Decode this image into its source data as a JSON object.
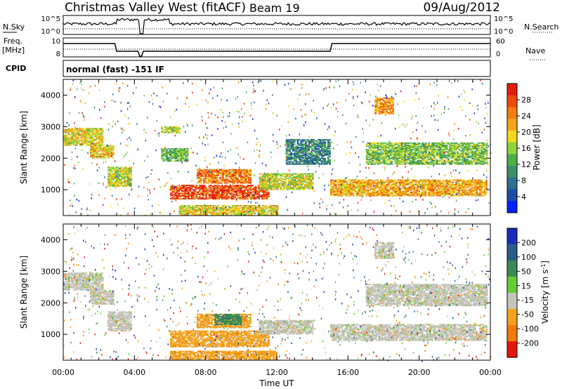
{
  "header": {
    "station": "Christmas Valley West (fitACF)",
    "beam": "Beam 19",
    "date": "09/Aug/2012"
  },
  "side_labels": {
    "nsky": "N.Sky",
    "nsearch": "N.Search",
    "freq": "Freq.",
    "freq_unit": "[MHz]",
    "nave": "Nave",
    "cpid": "CPID",
    "cpid_value": "normal (fast) -151 IF"
  },
  "noise_axis": {
    "left_ticks": [
      "10^5",
      "10^0"
    ],
    "right_ticks": [
      "10^5",
      "10^0"
    ]
  },
  "freq_axis": {
    "left_ticks": [
      "10",
      "8"
    ],
    "right_ticks": [
      "60",
      "0"
    ]
  },
  "chart_data": [
    {
      "type": "heatmap",
      "name": "power",
      "ylabel": "Slant Range [km]",
      "xlabel": "Time UT",
      "ylim": [
        180,
        4500
      ],
      "y_ticks": [
        "1000",
        "2000",
        "3000",
        "4000"
      ],
      "x_ticks": [
        "00:00",
        "04:00",
        "08:00",
        "12:00",
        "16:00",
        "20:00",
        "00:00"
      ],
      "colorbar": {
        "label": "Power [dB]",
        "ticks": [
          "4",
          "8",
          "12",
          "16",
          "20",
          "24",
          "28"
        ],
        "colors": [
          "#0022ff",
          "#1c4ca8",
          "#2f6f8f",
          "#3c8f6a",
          "#4fb04a",
          "#8fd43a",
          "#f0d81e",
          "#f5a61a",
          "#f27b12",
          "#ee4a0e",
          "#e51b0a"
        ]
      },
      "data_gap_hours": [
        4.25,
        4.5
      ],
      "bands": [
        {
          "t": [
            0.0,
            2.2
          ],
          "r": [
            2400,
            2950
          ],
          "level": 0.6
        },
        {
          "t": [
            1.5,
            2.8
          ],
          "r": [
            2000,
            2400
          ],
          "level": 0.65
        },
        {
          "t": [
            2.5,
            3.8
          ],
          "r": [
            1100,
            1700
          ],
          "level": 0.55
        },
        {
          "t": [
            5.5,
            7.0
          ],
          "r": [
            1900,
            2300
          ],
          "level": 0.4
        },
        {
          "t": [
            6.0,
            11.5
          ],
          "r": [
            700,
            1150
          ],
          "level": 0.9
        },
        {
          "t": [
            7.5,
            10.5
          ],
          "r": [
            1200,
            1650
          ],
          "level": 0.8
        },
        {
          "t": [
            6.5,
            12.0
          ],
          "r": [
            200,
            500
          ],
          "level": 0.6
        },
        {
          "t": [
            11.0,
            14.0
          ],
          "r": [
            1000,
            1500
          ],
          "level": 0.55
        },
        {
          "t": [
            15.0,
            23.8
          ],
          "r": [
            800,
            1300
          ],
          "level": 0.7
        },
        {
          "t": [
            17.0,
            23.8
          ],
          "r": [
            1800,
            2500
          ],
          "level": 0.45
        },
        {
          "t": [
            17.5,
            18.5
          ],
          "r": [
            3400,
            3900
          ],
          "level": 0.75
        },
        {
          "t": [
            12.5,
            15.0
          ],
          "r": [
            1800,
            2600
          ],
          "level": 0.25
        },
        {
          "t": [
            5.5,
            6.5
          ],
          "r": [
            2800,
            3000
          ],
          "level": 0.5
        }
      ]
    },
    {
      "type": "heatmap",
      "name": "velocity",
      "ylabel": "Slant Range [km]",
      "xlabel": "Time UT",
      "ylim": [
        180,
        4500
      ],
      "y_ticks": [
        "1000",
        "2000",
        "3000",
        "4000"
      ],
      "x_ticks": [
        "00:00",
        "04:00",
        "08:00",
        "12:00",
        "16:00",
        "20:00",
        "00:00"
      ],
      "colorbar": {
        "label": "Velocity [m s^-1]",
        "ticks": [
          "200",
          "100",
          "50",
          "15",
          "-15",
          "-50",
          "-100",
          "-200"
        ],
        "colors": [
          "#1a2db8",
          "#2a5c8a",
          "#3b8a55",
          "#66cc33",
          "#c4c4bc",
          "#f6a21c",
          "#f07a10",
          "#e3150c"
        ]
      },
      "data_gap_hours": [
        4.25,
        4.5
      ],
      "bands": [
        {
          "t": [
            0.0,
            2.2
          ],
          "r": [
            2400,
            2950
          ],
          "level": 4
        },
        {
          "t": [
            1.5,
            2.8
          ],
          "r": [
            1950,
            2400
          ],
          "level": 4
        },
        {
          "t": [
            2.5,
            3.8
          ],
          "r": [
            1100,
            1700
          ],
          "level": 4
        },
        {
          "t": [
            6.0,
            11.5
          ],
          "r": [
            600,
            1100
          ],
          "level": 5
        },
        {
          "t": [
            7.5,
            10.5
          ],
          "r": [
            1200,
            1650
          ],
          "level": 5
        },
        {
          "t": [
            8.5,
            10.0
          ],
          "r": [
            1300,
            1650
          ],
          "level": 2
        },
        {
          "t": [
            11.0,
            14.0
          ],
          "r": [
            1000,
            1450
          ],
          "level": 4
        },
        {
          "t": [
            15.0,
            23.8
          ],
          "r": [
            800,
            1300
          ],
          "level": 4
        },
        {
          "t": [
            17.0,
            23.8
          ],
          "r": [
            1900,
            2600
          ],
          "level": 4
        },
        {
          "t": [
            17.5,
            18.5
          ],
          "r": [
            3400,
            3900
          ],
          "level": 4
        },
        {
          "t": [
            6.0,
            12.0
          ],
          "r": [
            200,
            450
          ],
          "level": 5
        }
      ]
    }
  ]
}
